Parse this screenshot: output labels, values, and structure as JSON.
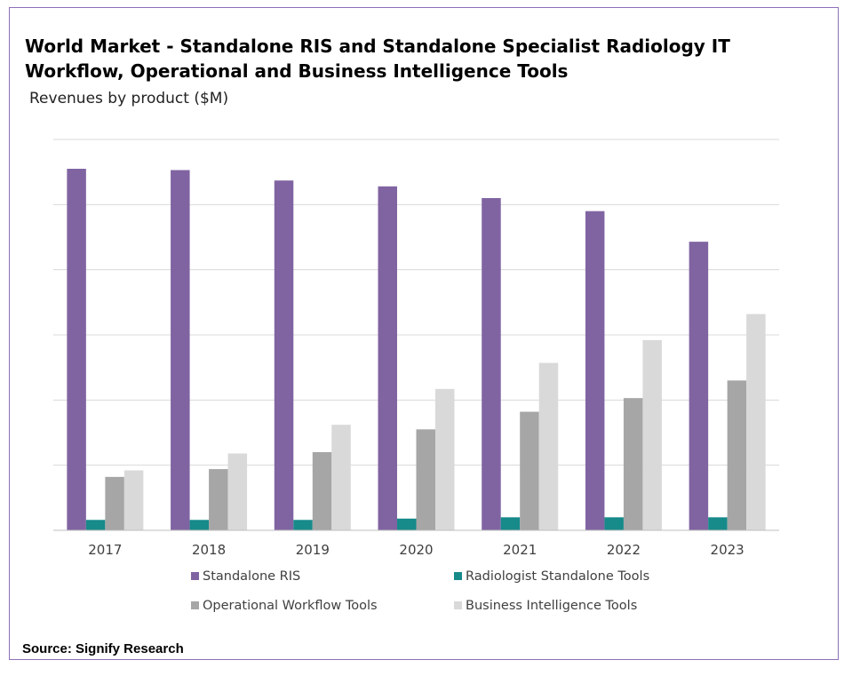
{
  "title_line1": "World Market - Standalone RIS and Standalone Specialist Radiology IT",
  "title_line2": "Workflow, Operational and Business Intelligence Tools",
  "subtitle": "Revenues by product ($M)",
  "source": "Source: Signify Research",
  "chart_data": {
    "type": "bar",
    "title": "World Market - Standalone RIS and Standalone Specialist Radiology IT Workflow, Operational and Business Intelligence Tools",
    "subtitle": "Revenues by product ($M)",
    "categories": [
      "2017",
      "2018",
      "2019",
      "2020",
      "2021",
      "2022",
      "2023"
    ],
    "series": [
      {
        "name": "Standalone RIS",
        "color": "#8064a2",
        "values": [
          55.5,
          55.3,
          53.7,
          52.8,
          51.0,
          49.0,
          44.3
        ]
      },
      {
        "name": "Radiologist Standalone Tools",
        "color": "#178a8a",
        "values": [
          1.6,
          1.6,
          1.6,
          1.8,
          2.0,
          2.0,
          2.0
        ]
      },
      {
        "name": "Operational Workflow Tools",
        "color": "#a6a6a6",
        "values": [
          8.2,
          9.4,
          12.0,
          15.5,
          18.2,
          20.3,
          23.0
        ]
      },
      {
        "name": "Business Intelligence Tools",
        "color": "#d9d9d9",
        "values": [
          9.2,
          11.8,
          16.2,
          21.7,
          25.7,
          29.2,
          33.2
        ]
      }
    ],
    "ylim": [
      0,
      60
    ],
    "gridlines": 6,
    "y_tick_labels_shown": false,
    "legend_position": "bottom",
    "xlabel": "",
    "ylabel": ""
  }
}
